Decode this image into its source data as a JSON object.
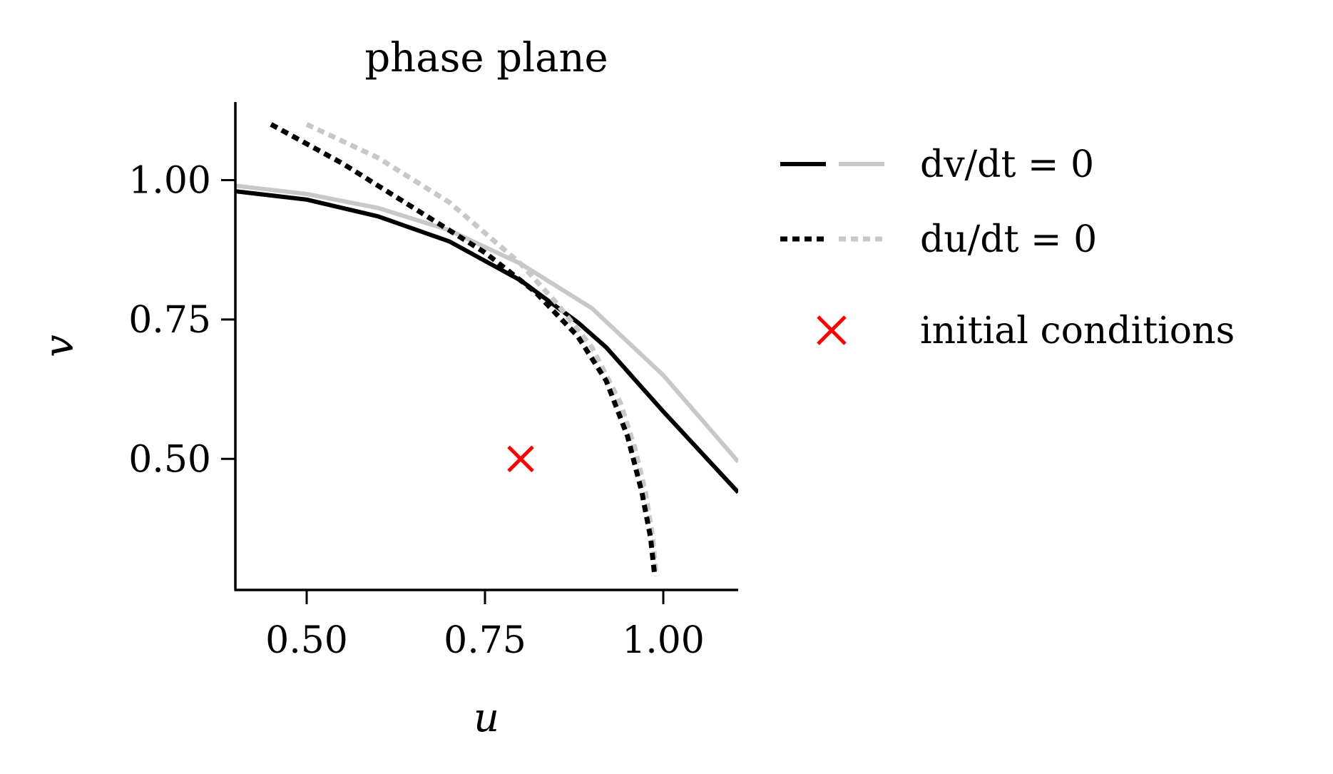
{
  "chart_data": {
    "type": "line",
    "title": "phase plane",
    "xlabel": "u",
    "ylabel": "v",
    "xlim": [
      0.4,
      1.105
    ],
    "ylim": [
      0.265,
      1.14
    ],
    "xticks": [
      0.5,
      0.75,
      1.0
    ],
    "yticks": [
      0.5,
      0.75,
      1.0
    ],
    "xtick_labels": [
      "0.50",
      "0.75",
      "1.00"
    ],
    "ytick_labels": [
      "0.50",
      "0.75",
      "1.00"
    ],
    "grid": false,
    "legend_placement": "outside-right",
    "colors": {
      "black": "#000000",
      "gray": "#c8c8c8",
      "marker": "#ff0000"
    },
    "series": [
      {
        "group": "dv_dt",
        "color": "gray",
        "style": "solid",
        "x": [
          0.4,
          0.5,
          0.6,
          0.7,
          0.8,
          0.9,
          1.0,
          1.105
        ],
        "y": [
          0.99,
          0.975,
          0.95,
          0.91,
          0.85,
          0.77,
          0.65,
          0.495
        ]
      },
      {
        "group": "dv_dt",
        "color": "black",
        "style": "solid",
        "x": [
          0.4,
          0.5,
          0.6,
          0.7,
          0.8,
          0.88,
          0.92,
          1.0,
          1.105
        ],
        "y": [
          0.98,
          0.965,
          0.935,
          0.89,
          0.82,
          0.745,
          0.7,
          0.585,
          0.44
        ]
      },
      {
        "group": "du_dt",
        "color": "gray",
        "style": "dashed",
        "x": [
          0.5,
          0.6,
          0.7,
          0.8,
          0.85,
          0.9,
          0.94,
          0.96,
          0.975,
          0.985,
          0.99
        ],
        "y": [
          1.1,
          1.04,
          0.96,
          0.85,
          0.78,
          0.7,
          0.6,
          0.52,
          0.44,
          0.36,
          0.29
        ]
      },
      {
        "group": "du_dt",
        "color": "black",
        "style": "dashed",
        "x": [
          0.45,
          0.55,
          0.65,
          0.75,
          0.82,
          0.88,
          0.92,
          0.95,
          0.97,
          0.982,
          0.988
        ],
        "y": [
          1.1,
          1.03,
          0.95,
          0.87,
          0.8,
          0.72,
          0.64,
          0.54,
          0.44,
          0.36,
          0.29
        ]
      }
    ],
    "markers": [
      {
        "group": "initial",
        "x": 0.8,
        "y": 0.5,
        "symbol": "x",
        "color": "marker"
      }
    ],
    "legend": [
      {
        "group": "dv_dt",
        "label": "dv/dt = 0",
        "style": "solid"
      },
      {
        "group": "du_dt",
        "label": "du/dt = 0",
        "style": "dashed"
      },
      {
        "group": "initial",
        "label": "initial conditions",
        "style": "marker"
      }
    ]
  }
}
